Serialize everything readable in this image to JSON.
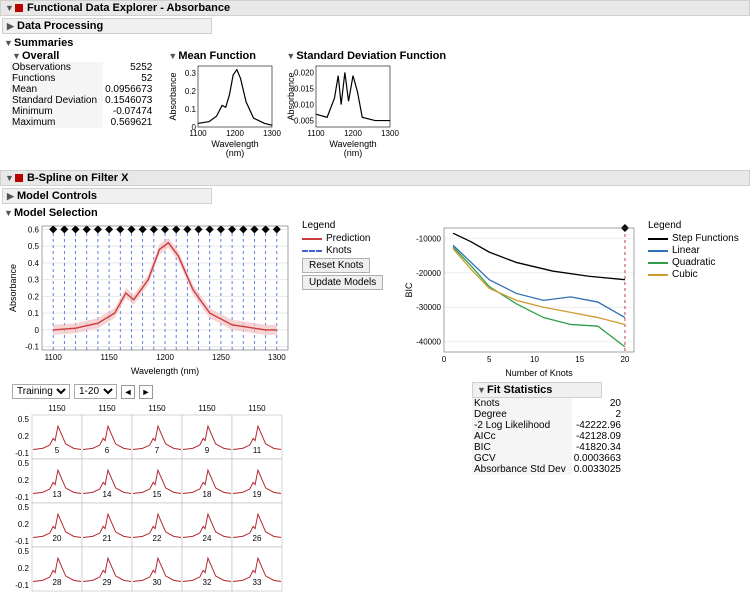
{
  "window": {
    "title": "Functional Data Explorer - Absorbance"
  },
  "data_processing": {
    "title": "Data Processing"
  },
  "summaries": {
    "title": "Summaries",
    "overall": {
      "title": "Overall",
      "rows": [
        {
          "label": "Observations",
          "value": "5252"
        },
        {
          "label": "Functions",
          "value": "52"
        },
        {
          "label": "Mean",
          "value": "0.0956673"
        },
        {
          "label": "Standard Deviation",
          "value": "0.1546073"
        },
        {
          "label": "Minimum",
          "value": "-0.07474"
        },
        {
          "label": "Maximum",
          "value": "0.569621"
        }
      ]
    },
    "mean_fn": {
      "title": "Mean Function",
      "ylabel": "Absorbance",
      "xlabel": "Wavelength (nm)",
      "xticks": [
        "1100",
        "1200",
        "1300"
      ],
      "yticks": [
        "0",
        "0.1",
        "0.2",
        "0.3"
      ],
      "xlim": [
        1100,
        1300
      ],
      "ylim": [
        0,
        0.34
      ],
      "curve": [
        [
          1100,
          0.02
        ],
        [
          1130,
          0.03
        ],
        [
          1150,
          0.06
        ],
        [
          1165,
          0.12
        ],
        [
          1175,
          0.11
        ],
        [
          1185,
          0.18
        ],
        [
          1195,
          0.29
        ],
        [
          1205,
          0.32
        ],
        [
          1215,
          0.27
        ],
        [
          1230,
          0.14
        ],
        [
          1250,
          0.05
        ],
        [
          1280,
          0.02
        ],
        [
          1300,
          0.01
        ]
      ],
      "color": "#000000"
    },
    "sd_fn": {
      "title": "Standard Deviation Function",
      "ylabel": "Absorbance",
      "xlabel": "Wavelength (nm)",
      "xticks": [
        "1100",
        "1200",
        "1300"
      ],
      "yticks": [
        "0.005",
        "0.010",
        "0.015",
        "0.020"
      ],
      "xlim": [
        1100,
        1300
      ],
      "ylim": [
        0.003,
        0.022
      ],
      "curve": [
        [
          1100,
          0.007
        ],
        [
          1130,
          0.006
        ],
        [
          1150,
          0.012
        ],
        [
          1160,
          0.019
        ],
        [
          1168,
          0.01
        ],
        [
          1178,
          0.02
        ],
        [
          1188,
          0.011
        ],
        [
          1200,
          0.019
        ],
        [
          1212,
          0.014
        ],
        [
          1225,
          0.006
        ],
        [
          1260,
          0.005
        ],
        [
          1300,
          0.005
        ]
      ],
      "color": "#000000"
    }
  },
  "bspline": {
    "title": "B-Spline on Filter X",
    "model_controls": "Model Controls",
    "model_selection": "Model Selection",
    "main_plot": {
      "ylabel": "Absorbance",
      "xlabel": "Wavelength (nm)",
      "xticks": [
        "1100",
        "1150",
        "1200",
        "1250",
        "1300"
      ],
      "yticks": [
        "-0.1",
        "0",
        "0.1",
        "0.2",
        "0.3",
        "0.4",
        "0.5",
        "0.6"
      ],
      "xlim": [
        1090,
        1310
      ],
      "ylim": [
        -0.12,
        0.62
      ],
      "knots_x": [
        1100,
        1110,
        1120,
        1130,
        1140,
        1150,
        1160,
        1170,
        1180,
        1190,
        1200,
        1210,
        1220,
        1230,
        1240,
        1250,
        1260,
        1270,
        1280,
        1290,
        1300
      ],
      "knot_marker_y": 0.6,
      "curve": [
        [
          1100,
          0.0
        ],
        [
          1120,
          0.01
        ],
        [
          1140,
          0.04
        ],
        [
          1155,
          0.1
        ],
        [
          1165,
          0.22
        ],
        [
          1172,
          0.18
        ],
        [
          1185,
          0.3
        ],
        [
          1195,
          0.48
        ],
        [
          1203,
          0.52
        ],
        [
          1212,
          0.44
        ],
        [
          1225,
          0.24
        ],
        [
          1240,
          0.1
        ],
        [
          1260,
          0.03
        ],
        [
          1290,
          0.0
        ],
        [
          1300,
          0.0
        ]
      ],
      "band_color": "#f4c2c2",
      "pred_color": "#cc3a3e",
      "knot_line_color": "#3b63d6",
      "marker_color": "#000000"
    },
    "legend1": {
      "title": "Legend",
      "items": [
        {
          "label": "Prediction",
          "color": "#cc3a3e",
          "style": "solid"
        },
        {
          "label": "Knots",
          "color": "#3b63d6",
          "style": "dashed"
        }
      ]
    },
    "buttons": {
      "reset": "Reset Knots",
      "update": "Update Models"
    },
    "bic_plot": {
      "ylabel": "BIC",
      "xlabel": "Number of Knots",
      "xticks": [
        "0",
        "5",
        "10",
        "15",
        "20"
      ],
      "yticks": [
        "-10000",
        "-20000",
        "-30000",
        "-40000"
      ],
      "xlim": [
        0,
        21
      ],
      "ylim": [
        -43000,
        -7000
      ],
      "marker_x": 20,
      "series": [
        {
          "name": "Step Functions",
          "color": "#000000",
          "pts": [
            [
              1,
              -8500
            ],
            [
              3,
              -11000
            ],
            [
              5,
              -14000
            ],
            [
              8,
              -17000
            ],
            [
              12,
              -19500
            ],
            [
              16,
              -21000
            ],
            [
              20,
              -22000
            ]
          ]
        },
        {
          "name": "Linear",
          "color": "#2f6fb3",
          "pts": [
            [
              1,
              -12000
            ],
            [
              3,
              -17000
            ],
            [
              5,
              -22000
            ],
            [
              8,
              -26000
            ],
            [
              11,
              -28000
            ],
            [
              14,
              -27000
            ],
            [
              17,
              -28500
            ],
            [
              20,
              -33000
            ]
          ]
        },
        {
          "name": "Quadratic",
          "color": "#2e9e4a",
          "pts": [
            [
              1,
              -12500
            ],
            [
              3,
              -18000
            ],
            [
              5,
              -24000
            ],
            [
              8,
              -29000
            ],
            [
              11,
              -33000
            ],
            [
              14,
              -35000
            ],
            [
              17,
              -35500
            ],
            [
              20,
              -41500
            ]
          ]
        },
        {
          "name": "Cubic",
          "color": "#d09a2e",
          "pts": [
            [
              1,
              -13000
            ],
            [
              3,
              -19000
            ],
            [
              5,
              -24500
            ],
            [
              8,
              -28000
            ],
            [
              11,
              -30000
            ],
            [
              14,
              -31500
            ],
            [
              17,
              -33000
            ],
            [
              20,
              -35000
            ]
          ]
        }
      ],
      "vline_color": "#c04040"
    },
    "legend2": {
      "title": "Legend",
      "items": [
        {
          "label": "Step Functions",
          "color": "#000000"
        },
        {
          "label": "Linear",
          "color": "#2f6fb3"
        },
        {
          "label": "Quadratic",
          "color": "#2e9e4a"
        },
        {
          "label": "Cubic",
          "color": "#d09a2e"
        }
      ]
    },
    "training": {
      "label": "Training",
      "range": "1-20"
    },
    "grid": {
      "col_headers": [
        "1150",
        "1150",
        "1150",
        "1150",
        "1150"
      ],
      "yticks": [
        "-0.1",
        "0.2",
        "0.5"
      ],
      "cell_ids": [
        [
          "5",
          "6",
          "7",
          "9",
          "11"
        ],
        [
          "13",
          "14",
          "15",
          "18",
          "19"
        ],
        [
          "20",
          "21",
          "22",
          "24",
          "26"
        ],
        [
          "28",
          "29",
          "30",
          "32",
          "33"
        ]
      ],
      "curve": [
        [
          0,
          0.0
        ],
        [
          0.2,
          0.02
        ],
        [
          0.35,
          0.08
        ],
        [
          0.42,
          0.2
        ],
        [
          0.46,
          0.16
        ],
        [
          0.52,
          0.42
        ],
        [
          0.58,
          0.3
        ],
        [
          0.68,
          0.1
        ],
        [
          0.85,
          0.02
        ],
        [
          1,
          0.0
        ]
      ],
      "curve_color": "#b3282d"
    },
    "fit_stats": {
      "title": "Fit Statistics",
      "rows": [
        {
          "label": "Knots",
          "value": "20"
        },
        {
          "label": "Degree",
          "value": "2"
        },
        {
          "label": "-2 Log Likelihood",
          "value": "-42222.96"
        },
        {
          "label": "AICc",
          "value": "-42128.09"
        },
        {
          "label": "BIC",
          "value": "-41820.34"
        },
        {
          "label": "GCV",
          "value": "0.0003663"
        },
        {
          "label": "Absorbance Std Dev",
          "value": "0.0033025"
        }
      ]
    }
  }
}
